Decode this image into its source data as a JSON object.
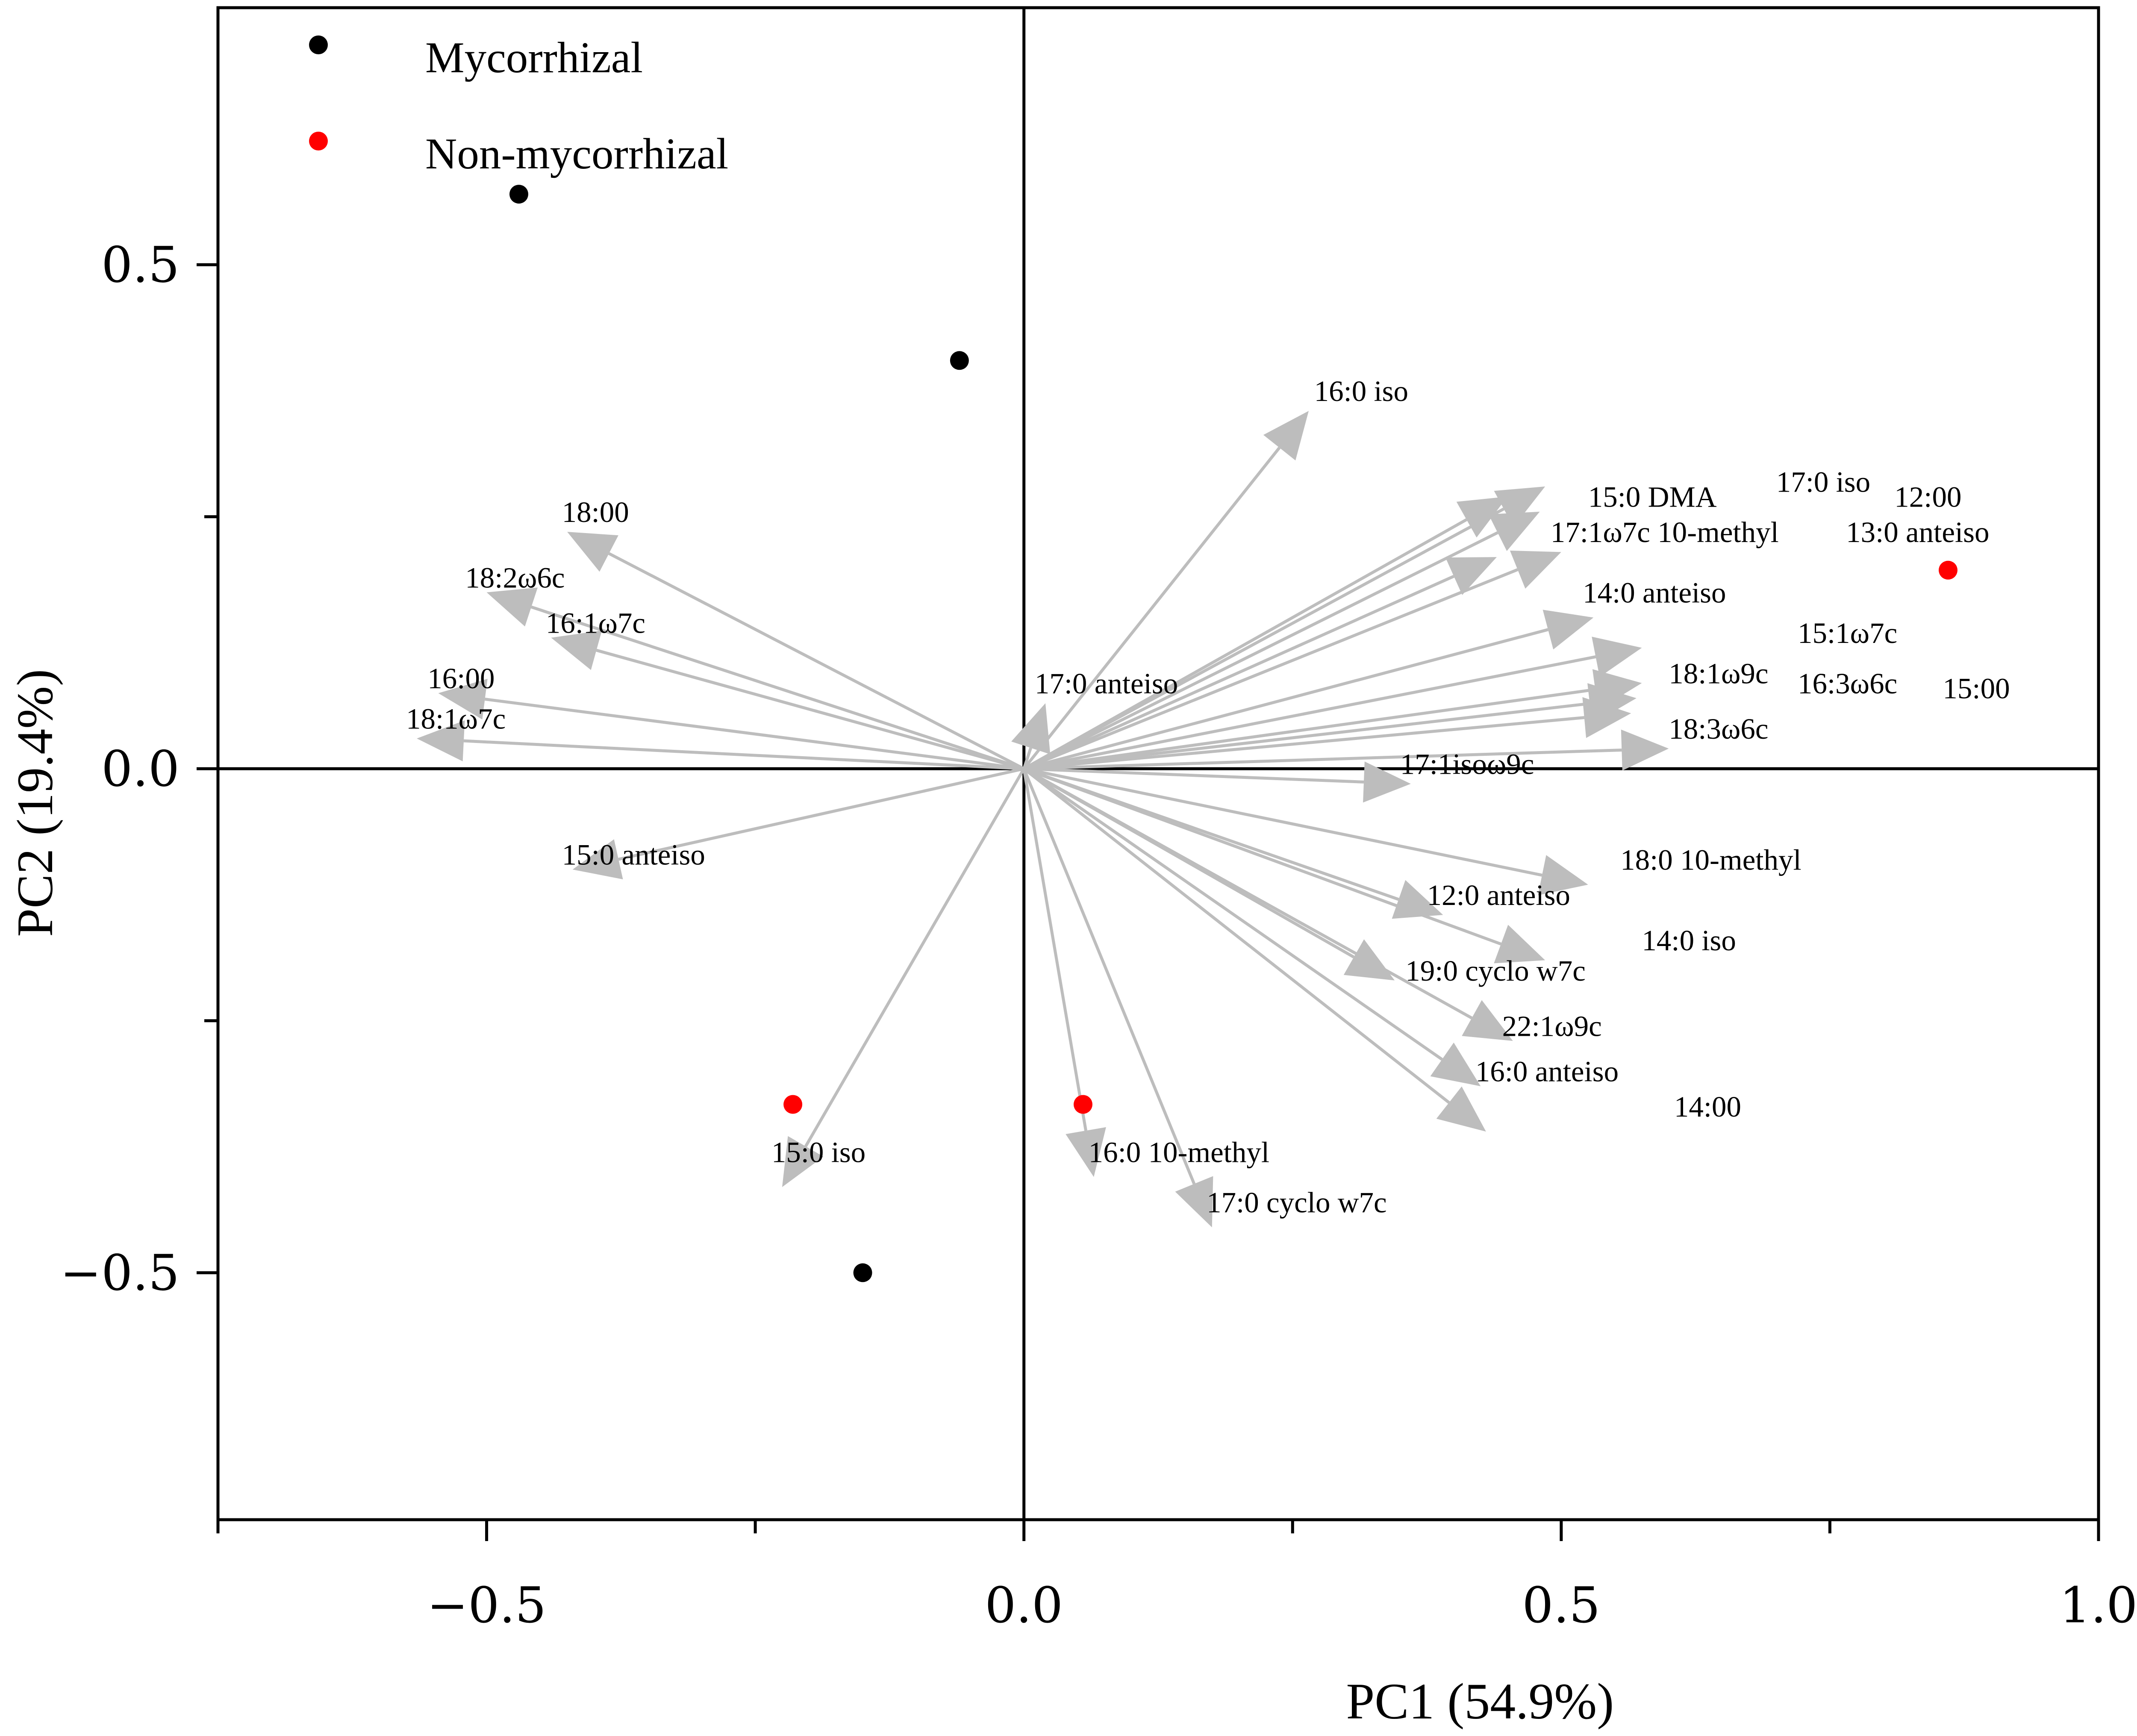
{
  "chart_data": {
    "type": "scatter",
    "xlabel": "PC1 (54.9%)",
    "ylabel": "PC2 (19.4%)",
    "xlim": [
      -0.75,
      1.0
    ],
    "ylim": [
      -0.745,
      0.755
    ],
    "x_ticks": [
      {
        "value": -0.5,
        "label": "−0.5"
      },
      {
        "value": 0.0,
        "label": "0.0"
      },
      {
        "value": 0.5,
        "label": "0.5"
      },
      {
        "value": 1.0,
        "label": "1.0"
      }
    ],
    "x_minor_ticks": [
      -0.75,
      -0.25,
      0.25,
      0.75
    ],
    "y_ticks": [
      {
        "value": 0.5,
        "label": "0.5"
      },
      {
        "value": 0.0,
        "label": "0.0"
      },
      {
        "value": -0.5,
        "label": "−0.5"
      }
    ],
    "y_minor_ticks": [
      0.25,
      -0.25
    ],
    "grid": false,
    "zero_lines": true,
    "legend_position": "top-left",
    "series": [
      {
        "name": "Mycorrhizal",
        "color": "#000000",
        "points": [
          {
            "x": -0.47,
            "y": 0.57
          },
          {
            "x": -0.06,
            "y": 0.405
          },
          {
            "x": -0.15,
            "y": -0.5
          }
        ]
      },
      {
        "name": "Non-mycorrhizal",
        "color": "#ff0000",
        "points": [
          {
            "x": 0.86,
            "y": 0.197
          },
          {
            "x": -0.215,
            "y": -0.333
          },
          {
            "x": 0.055,
            "y": -0.333
          }
        ]
      }
    ],
    "loadings": [
      {
        "name": "16:0 iso",
        "x": 0.265,
        "y": 0.355,
        "lx": 0.27,
        "ly": 0.375
      },
      {
        "name": "15:0 DMA",
        "x": 0.485,
        "y": 0.28,
        "lx": 0.525,
        "ly": 0.27
      },
      {
        "name": "17:0 iso",
        "x": 0.45,
        "y": 0.27,
        "lx": 0.7,
        "ly": 0.285
      },
      {
        "name": "12:00",
        "x": 0.48,
        "y": 0.255,
        "lx": 0.81,
        "ly": 0.27
      },
      {
        "name": "17:1ω7c 10-methyl",
        "x": 0.44,
        "y": 0.21,
        "lx": 0.49,
        "ly": 0.235
      },
      {
        "name": "13:0 anteiso",
        "x": 0.5,
        "y": 0.215,
        "lx": 0.765,
        "ly": 0.235
      },
      {
        "name": "14:0 anteiso",
        "x": 0.53,
        "y": 0.15,
        "lx": 0.52,
        "ly": 0.175
      },
      {
        "name": "15:1ω7c",
        "x": 0.575,
        "y": 0.12,
        "lx": 0.72,
        "ly": 0.135
      },
      {
        "name": "18:1ω9c",
        "x": 0.575,
        "y": 0.085,
        "lx": 0.6,
        "ly": 0.095
      },
      {
        "name": "16:3ω6c",
        "x": 0.57,
        "y": 0.07,
        "lx": 0.72,
        "ly": 0.085
      },
      {
        "name": "15:00",
        "x": 0.565,
        "y": 0.055,
        "lx": 0.855,
        "ly": 0.08
      },
      {
        "name": "18:3ω6c",
        "x": 0.6,
        "y": 0.02,
        "lx": 0.6,
        "ly": 0.04
      },
      {
        "name": "17:1isoω9c",
        "x": 0.36,
        "y": -0.015,
        "lx": 0.35,
        "ly": 0.005
      },
      {
        "name": "17:0 anteiso",
        "x": 0.02,
        "y": 0.065,
        "lx": 0.01,
        "ly": 0.085
      },
      {
        "name": "18:00",
        "x": -0.425,
        "y": 0.235,
        "lx": -0.43,
        "ly": 0.255
      },
      {
        "name": "18:2ω6c",
        "x": -0.5,
        "y": 0.175,
        "lx": -0.52,
        "ly": 0.19
      },
      {
        "name": "16:1ω7c",
        "x": -0.44,
        "y": 0.13,
        "lx": -0.445,
        "ly": 0.145
      },
      {
        "name": "16:00",
        "x": -0.545,
        "y": 0.075,
        "lx": -0.555,
        "ly": 0.09
      },
      {
        "name": "18:1ω7c",
        "x": -0.565,
        "y": 0.03,
        "lx": -0.575,
        "ly": 0.05
      },
      {
        "name": "15:0 anteiso",
        "x": -0.42,
        "y": -0.1,
        "lx": -0.43,
        "ly": -0.085
      },
      {
        "name": "15:0 iso",
        "x": -0.225,
        "y": -0.415,
        "lx": -0.235,
        "ly": -0.38
      },
      {
        "name": "16:0 10-methyl",
        "x": 0.065,
        "y": -0.405,
        "lx": 0.06,
        "ly": -0.38
      },
      {
        "name": "17:0 cyclo w7c",
        "x": 0.175,
        "y": -0.455,
        "lx": 0.17,
        "ly": -0.43
      },
      {
        "name": "18:0 10-methyl",
        "x": 0.525,
        "y": -0.115,
        "lx": 0.555,
        "ly": -0.09
      },
      {
        "name": "12:0 anteiso",
        "x": 0.39,
        "y": -0.145,
        "lx": 0.375,
        "ly": -0.125
      },
      {
        "name": "14:0 iso",
        "x": 0.485,
        "y": -0.19,
        "lx": 0.575,
        "ly": -0.17
      },
      {
        "name": "19:0 cyclo w7c",
        "x": 0.345,
        "y": -0.21,
        "lx": 0.355,
        "ly": -0.2
      },
      {
        "name": "22:1ω9c",
        "x": 0.455,
        "y": -0.27,
        "lx": 0.445,
        "ly": -0.255
      },
      {
        "name": "16:0 anteiso",
        "x": 0.425,
        "y": -0.315,
        "lx": 0.42,
        "ly": -0.3
      },
      {
        "name": "14:00",
        "x": 0.43,
        "y": -0.36,
        "lx": 0.605,
        "ly": -0.335
      }
    ]
  }
}
